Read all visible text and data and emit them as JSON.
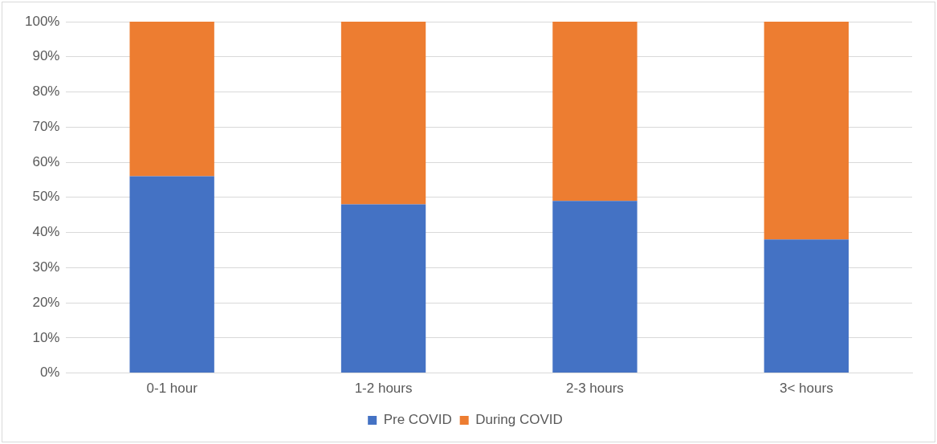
{
  "chart_data": {
    "type": "bar",
    "stacked": true,
    "categories": [
      "0-1 hour",
      "1-2 hours",
      "2-3 hours",
      "3< hours"
    ],
    "series": [
      {
        "name": "Pre COVID",
        "color": "#4472c4",
        "values": [
          56,
          48,
          49,
          38
        ]
      },
      {
        "name": "During COVID",
        "color": "#ed7d31",
        "values": [
          44,
          52,
          51,
          62
        ]
      }
    ],
    "ylim": [
      0,
      100
    ],
    "yticks": [
      {
        "value": 0,
        "label": "0%"
      },
      {
        "value": 10,
        "label": "10%"
      },
      {
        "value": 20,
        "label": "20%"
      },
      {
        "value": 30,
        "label": "30%"
      },
      {
        "value": 40,
        "label": "40%"
      },
      {
        "value": 50,
        "label": "50%"
      },
      {
        "value": 60,
        "label": "60%"
      },
      {
        "value": 70,
        "label": "70%"
      },
      {
        "value": 80,
        "label": "80%"
      },
      {
        "value": 90,
        "label": "90%"
      },
      {
        "value": 100,
        "label": "100%"
      }
    ],
    "grid": "y",
    "legend": "bottom"
  }
}
